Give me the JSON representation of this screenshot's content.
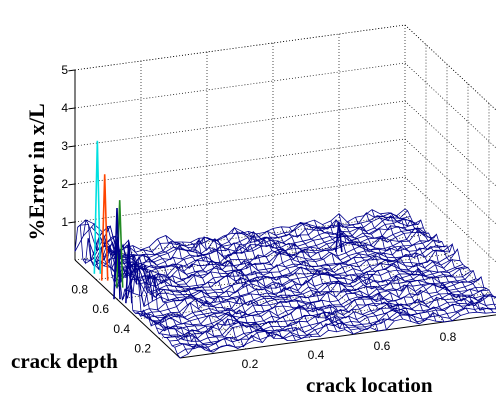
{
  "chart_data": {
    "type": "surface",
    "title": "",
    "xlabel": "crack location",
    "ylabel": "crack depth",
    "zlabel": "%Error in x/L",
    "xlim": [
      0,
      1
    ],
    "ylim": [
      0,
      1
    ],
    "zlim": [
      0,
      5
    ],
    "x_ticks": [
      "0.2",
      "0.4",
      "0.6",
      "0.8"
    ],
    "y_ticks": [
      "0.2",
      "0.4",
      "0.6",
      "0.8"
    ],
    "z_ticks": [
      "1",
      "2",
      "3",
      "4",
      "5"
    ],
    "grid": true,
    "mesh_color": "#00008b",
    "peaks": [
      {
        "x": 0.02,
        "y": 0.85,
        "z": 3.5,
        "color": "#00e0e0"
      },
      {
        "x": 0.02,
        "y": 0.78,
        "z": 2.8,
        "color": "#ff4500"
      },
      {
        "x": 0.04,
        "y": 0.7,
        "z": 2.3,
        "color": "#228b22"
      },
      {
        "x": 0.0,
        "y": 0.6,
        "z": 2.4,
        "color": "#00008b"
      },
      {
        "x": 0.02,
        "y": 0.55,
        "z": 1.6,
        "color": "#00008b"
      },
      {
        "x": 0.05,
        "y": 0.75,
        "z": 1.2,
        "color": "#00008b"
      },
      {
        "x": 0.72,
        "y": 0.75,
        "z": 0.8,
        "color": "#00008b"
      }
    ],
    "typical_error_range": [
      0,
      0.6
    ]
  }
}
